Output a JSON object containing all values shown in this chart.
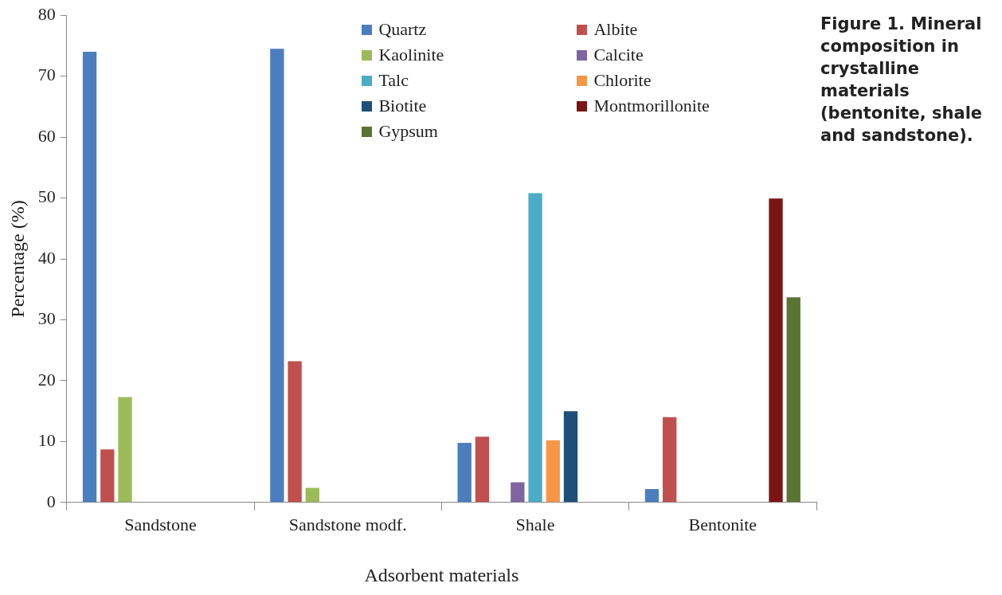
{
  "chart_data": {
    "type": "bar",
    "title": "Figure 1. Mineral composition in crystalline materials (bentonite, shale and sandstone).",
    "xlabel": "Adsorbent materials",
    "ylabel": "Percentage (%)",
    "categories": [
      "Sandstone",
      "Sandstone modf.",
      "Shale",
      "Bentonite"
    ],
    "series": [
      {
        "name": "Quartz",
        "color": "#4a7ebf",
        "values": [
          74,
          74.5,
          9.8,
          2.2
        ]
      },
      {
        "name": "Albite",
        "color": "#c0504d",
        "values": [
          8.7,
          23.2,
          10.8,
          14
        ]
      },
      {
        "name": "Kaolinite",
        "color": "#9bbb59",
        "values": [
          17.3,
          2.4,
          null,
          null
        ]
      },
      {
        "name": "Calcite",
        "color": "#8064a2",
        "values": [
          null,
          null,
          3.3,
          null
        ]
      },
      {
        "name": "Talc",
        "color": "#4bacc6",
        "values": [
          null,
          null,
          50.8,
          null
        ]
      },
      {
        "name": "Chlorite",
        "color": "#f79646",
        "values": [
          null,
          null,
          10.2,
          null
        ]
      },
      {
        "name": "Biotite",
        "color": "#1f4e79",
        "values": [
          null,
          null,
          15,
          null
        ]
      },
      {
        "name": "Montmorillonite",
        "color": "#7b1414",
        "values": [
          null,
          null,
          null,
          49.9
        ]
      },
      {
        "name": "Gypsum",
        "color": "#5a7432",
        "values": [
          null,
          null,
          null,
          33.7
        ]
      }
    ],
    "ylim": [
      0,
      80
    ],
    "yticks": [
      0,
      10,
      20,
      30,
      40,
      50,
      60,
      70,
      80
    ],
    "grid": false,
    "legend": "top"
  }
}
